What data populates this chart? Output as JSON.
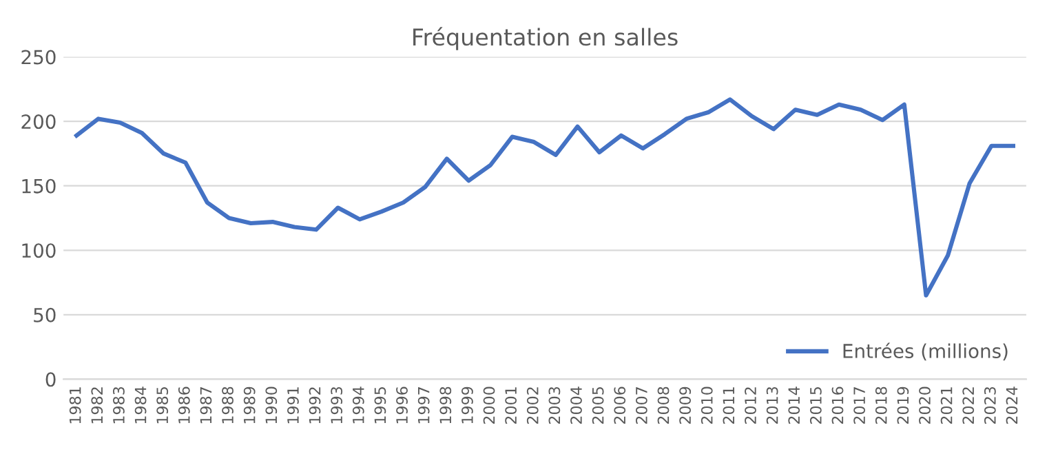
{
  "chart_data": {
    "type": "line",
    "title": "Fréquentation en salles",
    "categories": [
      "1981",
      "1982",
      "1983",
      "1984",
      "1985",
      "1986",
      "1987",
      "1988",
      "1989",
      "1990",
      "1991",
      "1992",
      "1993",
      "1994",
      "1995",
      "1996",
      "1997",
      "1998",
      "1999",
      "2000",
      "2001",
      "2002",
      "2003",
      "2004",
      "2005",
      "2006",
      "2007",
      "2008",
      "2009",
      "2010",
      "2011",
      "2012",
      "2013",
      "2014",
      "2015",
      "2016",
      "2017",
      "2018",
      "2019",
      "2020",
      "2021",
      "2022",
      "2023",
      "2024"
    ],
    "series": [
      {
        "name": "Entrées (millions)",
        "color": "#4472c4",
        "values": [
          189,
          202,
          199,
          191,
          175,
          168,
          137,
          125,
          121,
          122,
          118,
          116,
          133,
          124,
          130,
          137,
          149,
          171,
          154,
          166,
          188,
          184,
          174,
          196,
          176,
          189,
          179,
          190,
          202,
          207,
          217,
          204,
          194,
          209,
          205,
          213,
          209,
          201,
          213,
          65,
          96,
          152,
          181,
          181
        ]
      }
    ],
    "ylim": [
      0,
      250
    ],
    "yticks": [
      0,
      50,
      100,
      150,
      200,
      250
    ],
    "grid": "y",
    "legend": "bottom right",
    "marker": "none",
    "line_style": "solid"
  }
}
